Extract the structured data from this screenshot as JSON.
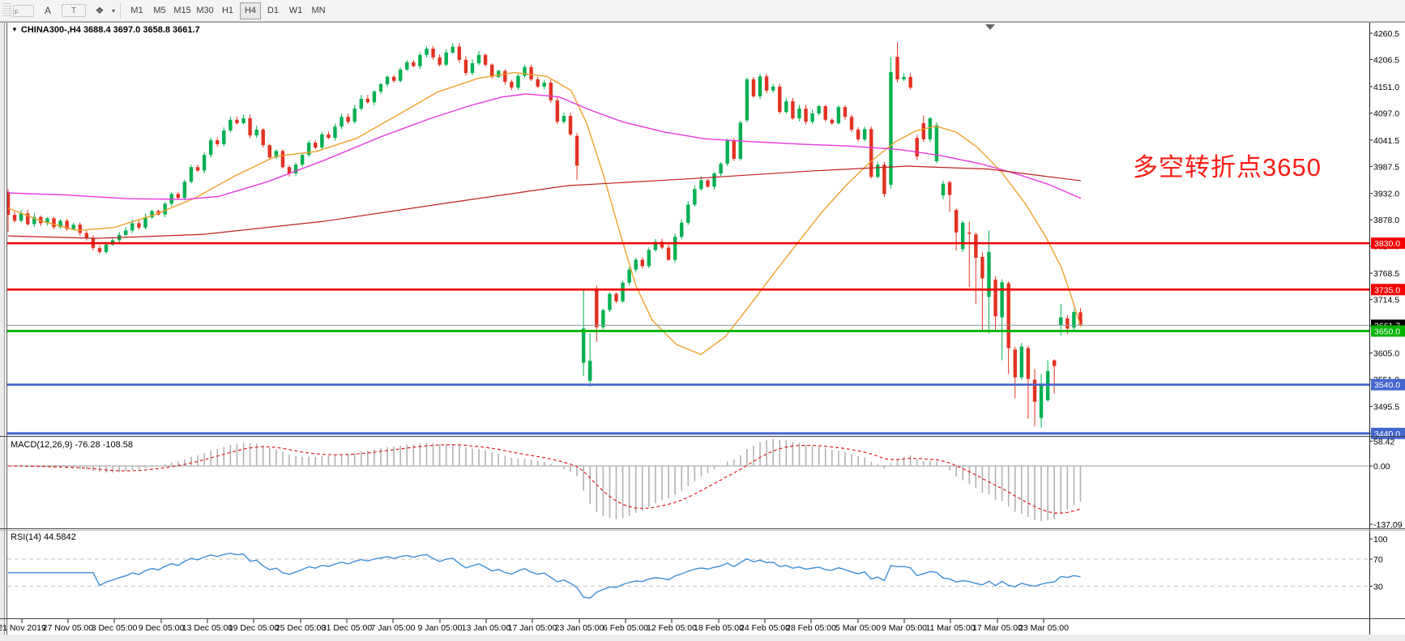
{
  "toolbar": {
    "icon_labels": {
      "template": "F",
      "text_a": "A",
      "text_box": "T",
      "tools": "❖",
      "dropdown": "▾"
    },
    "timeframes": [
      "M1",
      "M5",
      "M15",
      "M30",
      "H1",
      "H4",
      "D1",
      "W1",
      "MN"
    ],
    "active_timeframe": "H4"
  },
  "header": {
    "caret": "▼",
    "title": "CHINA300-,H4  3688.4 3697.0 3658.8 3661.7"
  },
  "annotation": {
    "text": "多空转折点3650",
    "color": "#fa1f15"
  },
  "macd_label": "MACD(12,26,9) -76.28 -108.58",
  "rsi_label": "RSI(14) 44.5842",
  "chart_data": {
    "type": "candlestick",
    "symbol": "CHINA300-",
    "period": "H4",
    "last_bar": {
      "open": 3688.4,
      "high": 3697.0,
      "low": 3658.8,
      "close": 3661.7
    },
    "price_axis": {
      "ticks": [
        "4260.5",
        "4206.5",
        "4151.0",
        "4097.0",
        "4041.5",
        "3987.5",
        "3932.0",
        "3878.0",
        "3824.0",
        "3768.5",
        "3714.5",
        "3660.0",
        "3605.0",
        "3551.0",
        "3495.5",
        "3440.0"
      ],
      "top": 4260.5,
      "bottom": 3440.0
    },
    "hlines": [
      {
        "price": 3830.0,
        "label": "3830.0",
        "color": "#f40000",
        "width": 2.6
      },
      {
        "price": 3735.0,
        "label": "3735.0",
        "color": "#f40000",
        "width": 2.6
      },
      {
        "price": 3650.0,
        "label": "3650.0",
        "color": "#00b400",
        "width": 2.8
      },
      {
        "price": 3540.0,
        "label": "3540.0",
        "color": "#4466cd",
        "width": 2.6
      },
      {
        "price": 3440.0,
        "label": "3440.0",
        "color": "#4466cd",
        "width": 3.0
      }
    ],
    "current_price": {
      "price": 3661.7,
      "label": "3661.7",
      "line_color": "#8a979f",
      "badge_bg": "#000000"
    },
    "candle_colors": {
      "up": "#00b050",
      "down": "#e23222"
    },
    "closes": [
      3888,
      3876,
      3891,
      3869,
      3884,
      3871,
      3881,
      3863,
      3876,
      3859,
      3868,
      3851,
      3841,
      3820,
      3812,
      3827,
      3836,
      3847,
      3856,
      3871,
      3862,
      3883,
      3896,
      3889,
      3911,
      3931,
      3923,
      3956,
      3986,
      3979,
      4011,
      4041,
      4033,
      4061,
      4083,
      4076,
      4086,
      4051,
      4063,
      4031,
      4006,
      4019,
      3986,
      3973,
      3991,
      4011,
      4036,
      4026,
      4053,
      4046,
      4069,
      4089,
      4079,
      4106,
      4126,
      4119,
      4141,
      4156,
      4171,
      4163,
      4186,
      4201,
      4193,
      4216,
      4229,
      4211,
      4196,
      4221,
      4233,
      4206,
      4179,
      4199,
      4216,
      4196,
      4171,
      4183,
      4161,
      4149,
      4173,
      4191,
      4166,
      4151,
      4159,
      4123,
      4079,
      4091,
      4053,
      3989,
      3655,
      3589,
      3658,
      3693,
      3726,
      3711,
      3749,
      3776,
      3796,
      3783,
      3816,
      3833,
      3821,
      3796,
      3843,
      3872,
      3909,
      3941,
      3959,
      3946,
      3973,
      3993,
      4041,
      4003,
      4077,
      4166,
      4131,
      4172,
      4143,
      4151,
      4099,
      4121,
      4086,
      4106,
      4079,
      4096,
      4111,
      4083,
      4076,
      4109,
      4089,
      4063,
      4043,
      4064,
      3966,
      3991,
      3931,
      4181,
      4166,
      4171,
      4149,
      4008,
      4043,
      4086,
      4072,
      3952,
      3929,
      3852,
      3872,
      3850,
      3800,
      3758,
      3812,
      3680,
      3750,
      3615,
      3555,
      3618,
      3552,
      3505,
      3540,
      3568,
      3578,
      3678,
      3655,
      3689,
      3661.7
    ],
    "ohlc_overrides": {
      "0": [
        3935,
        3941,
        3853,
        3888
      ],
      "87": [
        4050,
        4056,
        3960,
        3989
      ],
      "88": [
        3585,
        3737,
        3558,
        3655
      ],
      "89": [
        3548,
        3645,
        3536,
        3589
      ],
      "90": [
        3736,
        3743,
        3628,
        3658
      ],
      "113": [
        4082,
        4170,
        4078,
        4166
      ],
      "135": [
        3950,
        4212,
        3942,
        4181
      ],
      "136": [
        4212,
        4242,
        4160,
        4166
      ],
      "139": [
        4046,
        4052,
        4000,
        4008
      ],
      "140": [
        4076,
        4092,
        4038,
        4043
      ],
      "142": [
        3998,
        4078,
        3994,
        4072
      ],
      "143": [
        3928,
        3958,
        3920,
        3952
      ],
      "144": [
        3955,
        3958,
        3894,
        3929
      ],
      "145": [
        3898,
        3902,
        3815,
        3852
      ],
      "146": [
        3818,
        3876,
        3812,
        3872
      ],
      "147": [
        3852,
        3874,
        3740,
        3850
      ],
      "148": [
        3848,
        3852,
        3705,
        3800
      ],
      "149": [
        3802,
        3812,
        3650,
        3758
      ],
      "150": [
        3720,
        3856,
        3645,
        3812
      ],
      "151": [
        3755,
        3762,
        3648,
        3680
      ],
      "152": [
        3678,
        3756,
        3590,
        3750
      ],
      "153": [
        3748,
        3752,
        3562,
        3615
      ],
      "154": [
        3612,
        3618,
        3512,
        3555
      ],
      "156": [
        3615,
        3620,
        3470,
        3552
      ],
      "157": [
        3550,
        3572,
        3455,
        3505
      ],
      "158": [
        3472,
        3562,
        3452,
        3540
      ],
      "159": [
        3508,
        3590,
        3505,
        3568
      ],
      "160": [
        3590,
        3592,
        3522,
        3578
      ],
      "161": [
        3662,
        3706,
        3640,
        3678
      ],
      "162": [
        3676,
        3682,
        3644,
        3655
      ],
      "163": [
        3657,
        3695,
        3650,
        3689
      ],
      "164": [
        3688.4,
        3697.0,
        3658.8,
        3661.7
      ]
    },
    "moving_averages": [
      {
        "name": "ma-fast-orange",
        "color": "#f0a02a",
        "width": 1.4,
        "points": [
          [
            10,
            3902
          ],
          [
            50,
            3876
          ],
          [
            95,
            3856
          ],
          [
            140,
            3862
          ],
          [
            190,
            3888
          ],
          [
            240,
            3922
          ],
          [
            290,
            3968
          ],
          [
            340,
            4008
          ],
          [
            390,
            4018
          ],
          [
            440,
            4045
          ],
          [
            490,
            4092
          ],
          [
            540,
            4140
          ],
          [
            590,
            4168
          ],
          [
            635,
            4180
          ],
          [
            675,
            4172
          ],
          [
            705,
            4143
          ],
          [
            725,
            4072
          ],
          [
            745,
            3968
          ],
          [
            765,
            3852
          ],
          [
            785,
            3742
          ],
          [
            805,
            3672
          ],
          [
            835,
            3622
          ],
          [
            865,
            3602
          ],
          [
            895,
            3638
          ],
          [
            925,
            3702
          ],
          [
            955,
            3768
          ],
          [
            985,
            3832
          ],
          [
            1015,
            3895
          ],
          [
            1045,
            3950
          ],
          [
            1075,
            3998
          ],
          [
            1105,
            4038
          ],
          [
            1130,
            4060
          ],
          [
            1155,
            4070
          ],
          [
            1180,
            4058
          ],
          [
            1205,
            4028
          ],
          [
            1235,
            3978
          ],
          [
            1265,
            3912
          ],
          [
            1290,
            3845
          ],
          [
            1310,
            3780
          ],
          [
            1322,
            3722
          ],
          [
            1334,
            3658
          ]
        ]
      },
      {
        "name": "ma-mid-magenta",
        "color": "#e837df",
        "width": 1.4,
        "points": [
          [
            10,
            3933
          ],
          [
            80,
            3929
          ],
          [
            160,
            3921
          ],
          [
            230,
            3920
          ],
          [
            270,
            3926
          ],
          [
            330,
            3956
          ],
          [
            400,
            4000
          ],
          [
            470,
            4048
          ],
          [
            530,
            4085
          ],
          [
            580,
            4112
          ],
          [
            620,
            4130
          ],
          [
            650,
            4136
          ],
          [
            690,
            4130
          ],
          [
            730,
            4102
          ],
          [
            770,
            4078
          ],
          [
            820,
            4058
          ],
          [
            870,
            4044
          ],
          [
            930,
            4038
          ],
          [
            990,
            4033
          ],
          [
            1050,
            4029
          ],
          [
            1110,
            4022
          ],
          [
            1160,
            4010
          ],
          [
            1210,
            3993
          ],
          [
            1255,
            3972
          ],
          [
            1295,
            3950
          ],
          [
            1334,
            3922
          ]
        ]
      },
      {
        "name": "ma-slow-darkred",
        "color": "#c02020",
        "width": 1.2,
        "points": [
          [
            10,
            3845
          ],
          [
            120,
            3840
          ],
          [
            250,
            3848
          ],
          [
            400,
            3875
          ],
          [
            550,
            3912
          ],
          [
            700,
            3948
          ],
          [
            850,
            3962
          ],
          [
            1000,
            3978
          ],
          [
            1120,
            3988
          ],
          [
            1220,
            3982
          ],
          [
            1334,
            3958
          ]
        ]
      }
    ],
    "macd": {
      "params": "12,26,9",
      "values": [
        -76.28,
        -108.58
      ],
      "ticks": [
        {
          "v": 58.42,
          "label": "58.42"
        },
        {
          "v": 0,
          "label": "0.00"
        },
        {
          "v": -137.09,
          "label": "-137.09"
        }
      ],
      "bar_color": "#b2b2b2",
      "signal_color": "#dd2222"
    },
    "rsi": {
      "params": "14",
      "value": 44.5842,
      "ticks": [
        {
          "v": 100,
          "label": "100"
        },
        {
          "v": 70,
          "label": "70"
        },
        {
          "v": 30,
          "label": "30"
        }
      ],
      "levels": [
        70,
        30
      ],
      "line_color": "#3f8fd9",
      "level_color": "#c2c2c2"
    },
    "time_axis": [
      [
        "21 Nov 2019",
        27
      ],
      [
        "27 Nov 05:00",
        84
      ],
      [
        "3 Dec 05:00",
        141
      ],
      [
        "9 Dec 05:00",
        199
      ],
      [
        "13 Dec 05:00",
        256
      ],
      [
        "19 Dec 05:00",
        313
      ],
      [
        "25 Dec 05:00",
        371
      ],
      [
        "31 Dec 05:00",
        428
      ],
      [
        "7 Jan 05:00",
        485
      ],
      [
        "9 Jan 05:00",
        543
      ],
      [
        "13 Jan 05:00",
        600
      ],
      [
        "17 Jan 05:00",
        657
      ],
      [
        "23 Jan 05:00",
        715
      ],
      [
        "6 Feb 05:00",
        772
      ],
      [
        "12 Feb 05:00",
        829
      ],
      [
        "18 Feb 05:00",
        887
      ],
      [
        "24 Feb 05:00",
        944
      ],
      [
        "28 Feb 05:00",
        1001
      ],
      [
        "5 Mar 05:00",
        1059
      ],
      [
        "9 Mar 05:00",
        1116
      ],
      [
        "11 Mar 05:00",
        1173
      ],
      [
        "17 Mar 05:00",
        1231
      ],
      [
        "23 Mar 05:00",
        1288
      ]
    ]
  }
}
